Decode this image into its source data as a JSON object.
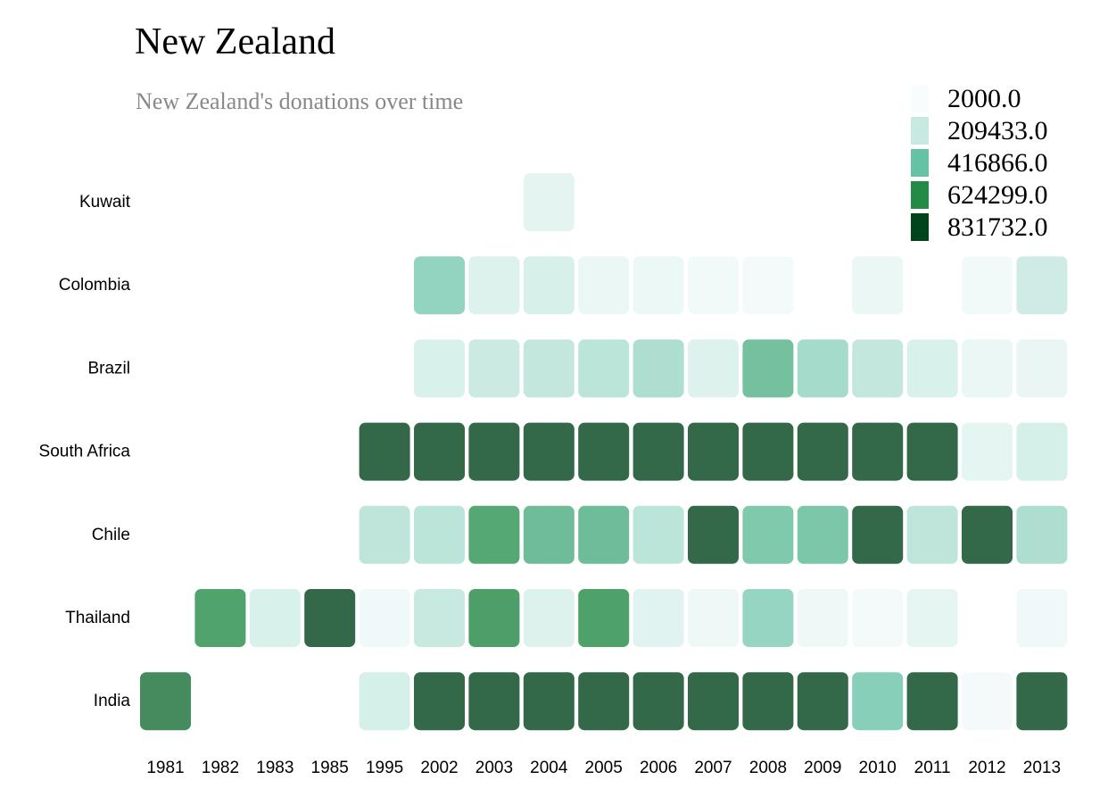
{
  "chart_data": {
    "type": "heatmap",
    "title": "New Zealand",
    "subtitle": "New Zealand's donations over time",
    "rows": [
      "Kuwait",
      "Colombia",
      "Brazil",
      "South Africa",
      "Chile",
      "Thailand",
      "India"
    ],
    "columns": [
      "1981",
      "1982",
      "1983",
      "1985",
      "1995",
      "2002",
      "2003",
      "2004",
      "2005",
      "2006",
      "2007",
      "2008",
      "2009",
      "2010",
      "2011",
      "2012",
      "2013"
    ],
    "values": [
      [
        null,
        null,
        null,
        null,
        null,
        null,
        null,
        120000,
        null,
        null,
        null,
        null,
        null,
        null,
        null,
        null,
        null
      ],
      [
        null,
        null,
        null,
        null,
        null,
        380000,
        150000,
        180000,
        80000,
        70000,
        40000,
        30000,
        null,
        80000,
        null,
        40000,
        220000
      ],
      [
        null,
        null,
        null,
        null,
        null,
        170000,
        230000,
        250000,
        270000,
        310000,
        150000,
        480000,
        330000,
        250000,
        170000,
        80000,
        90000
      ],
      [
        null,
        null,
        null,
        null,
        950000,
        950000,
        950000,
        950000,
        950000,
        950000,
        950000,
        950000,
        950000,
        950000,
        950000,
        110000,
        190000
      ],
      [
        null,
        null,
        null,
        null,
        260000,
        270000,
        600000,
        500000,
        500000,
        270000,
        950000,
        440000,
        450000,
        950000,
        260000,
        950000,
        310000
      ],
      [
        null,
        620000,
        170000,
        950000,
        50000,
        240000,
        640000,
        150000,
        630000,
        130000,
        60000,
        370000,
        60000,
        30000,
        110000,
        null,
        50000
      ],
      [
        710000,
        null,
        null,
        null,
        190000,
        950000,
        950000,
        950000,
        950000,
        950000,
        950000,
        950000,
        950000,
        410000,
        950000,
        30000,
        950000
      ]
    ],
    "color_scale": {
      "min": 2000.0,
      "max": 831732.0,
      "stops": [
        "#f7fcfd",
        "#c7e9e1",
        "#66c2a4",
        "#238b45",
        "#00441b"
      ]
    },
    "cell_opacity": 0.8,
    "legend": {
      "placement": "top-right",
      "labels": [
        "2000.0",
        "209433.0",
        "416866.0",
        "624299.0",
        "831732.0"
      ],
      "colors": [
        "#f7fcfd",
        "#c7e9e1",
        "#66c2a4",
        "#238b45",
        "#00441b"
      ]
    }
  }
}
